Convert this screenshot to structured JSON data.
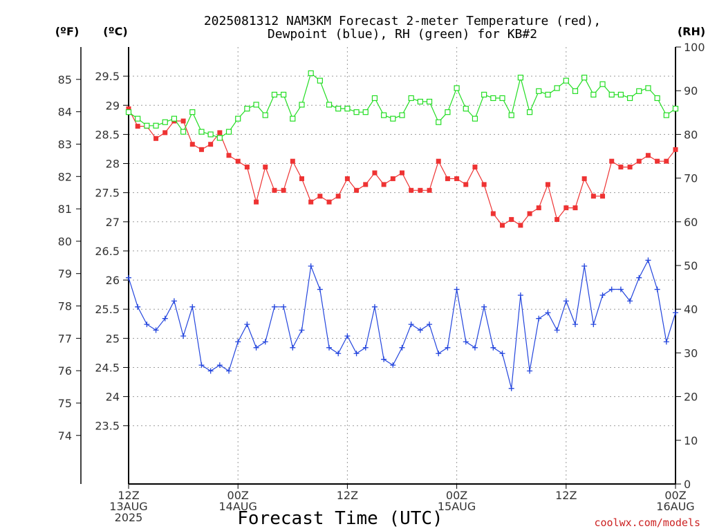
{
  "title_line1": "2025081312 NAM3KM Forecast 2-meter Temperature (red),",
  "title_line2": "Dewpoint (blue), RH (green) for KB#2",
  "unit_f": "(ºF)",
  "unit_c": "(ºC)",
  "unit_rh": "(RH)",
  "credit": "coolwx.com/models",
  "chart_data": {
    "type": "line",
    "xlabel": "Forecast Time (UTC)",
    "x_hours": [
      0,
      1,
      2,
      3,
      4,
      5,
      6,
      7,
      8,
      9,
      10,
      11,
      12,
      13,
      14,
      15,
      16,
      17,
      18,
      19,
      20,
      21,
      22,
      23,
      24,
      25,
      26,
      27,
      28,
      29,
      30,
      31,
      32,
      33,
      34,
      35,
      36,
      37,
      38,
      39,
      40,
      41,
      42,
      43,
      44,
      45,
      46,
      47,
      48,
      49,
      50,
      51,
      52,
      53,
      54,
      55,
      56,
      57,
      58,
      59,
      60
    ],
    "x_ticks": [
      {
        "hour": 0,
        "lines": [
          "12Z",
          "13AUG",
          "2025"
        ]
      },
      {
        "hour": 12,
        "lines": [
          "00Z",
          "14AUG"
        ]
      },
      {
        "hour": 24,
        "lines": [
          "12Z"
        ]
      },
      {
        "hour": 36,
        "lines": [
          "00Z",
          "15AUG"
        ]
      },
      {
        "hour": 48,
        "lines": [
          "12Z"
        ]
      },
      {
        "hour": 60,
        "lines": [
          "00Z",
          "16AUG"
        ]
      }
    ],
    "celsius_axis": {
      "range": [
        22.5,
        30
      ],
      "ticks": [
        "23.5",
        "24",
        "24.5",
        "25",
        "25.5",
        "26",
        "26.5",
        "27",
        "27.5",
        "28",
        "28.5",
        "29",
        "29.5"
      ]
    },
    "fahrenheit_axis": {
      "ticks": [
        "74",
        "75",
        "76",
        "77",
        "78",
        "79",
        "80",
        "81",
        "82",
        "83",
        "84",
        "85"
      ]
    },
    "rh_axis": {
      "range": [
        0,
        100
      ],
      "ticks": [
        "0",
        "10",
        "20",
        "30",
        "40",
        "50",
        "60",
        "70",
        "80",
        "90",
        "100"
      ]
    },
    "grid": true,
    "series": [
      {
        "name": "2-meter Temperature (red)",
        "color": "#ee3333",
        "marker": "filled-square",
        "axis": "celsius",
        "values": [
          28.94,
          28.64,
          28.64,
          28.43,
          28.53,
          28.73,
          28.73,
          28.33,
          28.24,
          28.33,
          28.53,
          28.14,
          28.04,
          27.94,
          27.34,
          27.94,
          27.54,
          27.54,
          28.04,
          27.74,
          27.34,
          27.44,
          27.34,
          27.44,
          27.74,
          27.54,
          27.64,
          27.84,
          27.64,
          27.74,
          27.84,
          27.54,
          27.54,
          27.54,
          28.04,
          27.74,
          27.74,
          27.64,
          27.94,
          27.64,
          27.14,
          26.94,
          27.04,
          26.94,
          27.14,
          27.24,
          27.64,
          27.04,
          27.24,
          27.24,
          27.74,
          27.44,
          27.44,
          28.04,
          27.94,
          27.94,
          28.04,
          28.14,
          28.04,
          28.04,
          28.24
        ]
      },
      {
        "name": "Dewpoint (blue)",
        "color": "#2244dd",
        "marker": "plus",
        "axis": "celsius",
        "values": [
          26.04,
          25.54,
          25.24,
          25.14,
          25.34,
          25.64,
          25.04,
          25.54,
          24.54,
          24.44,
          24.54,
          24.44,
          24.94,
          25.24,
          24.84,
          24.94,
          25.54,
          25.54,
          24.84,
          25.14,
          26.24,
          25.84,
          24.84,
          24.74,
          25.04,
          24.74,
          24.84,
          25.54,
          24.64,
          24.54,
          24.84,
          25.24,
          25.14,
          25.24,
          24.74,
          24.84,
          25.84,
          24.94,
          24.84,
          25.54,
          24.84,
          24.74,
          24.14,
          25.74,
          24.44,
          25.34,
          25.44,
          25.14,
          25.64,
          25.24,
          26.24,
          25.24,
          25.74,
          25.84,
          25.84,
          25.64,
          26.04,
          26.34,
          25.84,
          24.94,
          25.44
        ]
      },
      {
        "name": "RH (green)",
        "color": "#22dd22",
        "marker": "open-square",
        "axis": "rh",
        "values": [
          85.1,
          83.6,
          82.0,
          82.0,
          82.8,
          83.6,
          80.6,
          85.1,
          80.6,
          80.0,
          79.2,
          80.6,
          83.6,
          85.9,
          86.8,
          84.4,
          89.1,
          89.1,
          83.6,
          86.8,
          94.0,
          92.3,
          86.8,
          85.9,
          85.9,
          85.1,
          85.1,
          88.3,
          84.4,
          83.6,
          84.4,
          88.3,
          87.5,
          87.5,
          82.8,
          85.1,
          90.6,
          85.9,
          83.6,
          89.1,
          88.3,
          88.3,
          84.4,
          93.0,
          85.1,
          89.9,
          89.1,
          90.6,
          92.3,
          89.9,
          93.0,
          89.1,
          91.5,
          89.1,
          89.1,
          88.3,
          89.9,
          90.6,
          88.3,
          84.4,
          85.9
        ]
      }
    ]
  }
}
